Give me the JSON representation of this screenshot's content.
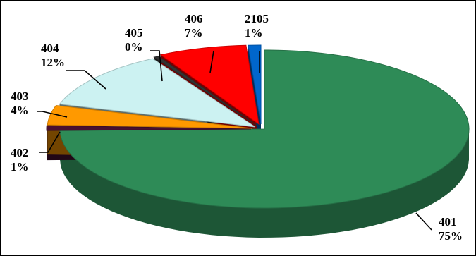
{
  "chart_data": {
    "type": "pie",
    "style": "3d-exploded",
    "slices": [
      {
        "name": "401",
        "percent_label": "75%",
        "value": 75,
        "color": "#2e8b57"
      },
      {
        "name": "402",
        "percent_label": "1%",
        "value": 1,
        "color": "#4a1030"
      },
      {
        "name": "403",
        "percent_label": "4%",
        "value": 4,
        "color": "#ff9900"
      },
      {
        "name": "404",
        "percent_label": "12%",
        "value": 12,
        "color": "#ccf2f2"
      },
      {
        "name": "405",
        "percent_label": "0%",
        "value": 0.4,
        "color": "#333333"
      },
      {
        "name": "406",
        "percent_label": "7%",
        "value": 7,
        "color": "#ff0000"
      },
      {
        "name": "2105",
        "percent_label": "1%",
        "value": 1,
        "color": "#0066cc"
      }
    ],
    "title": "",
    "legend": "none"
  }
}
